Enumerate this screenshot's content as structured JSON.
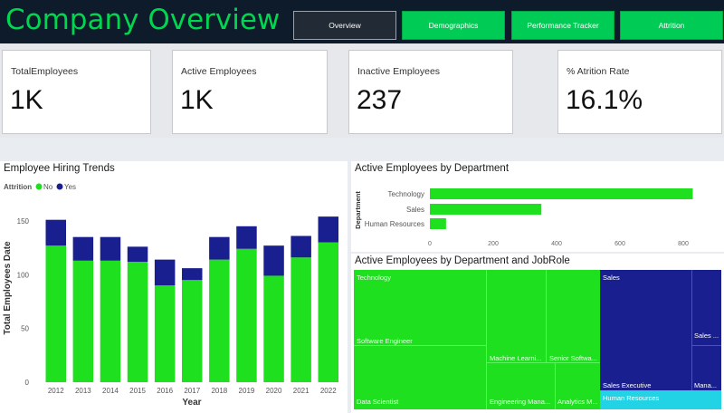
{
  "header": {
    "title": "Company Overview",
    "nav": [
      {
        "label": "Overview"
      },
      {
        "label": "Demographics"
      },
      {
        "label": "Performance Tracker"
      },
      {
        "label": "Attrition"
      }
    ]
  },
  "kpis": [
    {
      "label": "TotalEmployees",
      "value": "1K"
    },
    {
      "label": "Active Employees",
      "value": "1K"
    },
    {
      "label": "Inactive Employees",
      "value": "237"
    },
    {
      "label": "% Atrition Rate",
      "value": "16.1%"
    }
  ],
  "colors": {
    "no": "#1ee01e",
    "yes": "#1a1f8f",
    "brand": "#00d64f",
    "hr": "#22d3e6"
  },
  "chart_data": [
    {
      "type": "bar",
      "title": "Employee Hiring Trends",
      "legend_title": "Attrition",
      "legend_placement": "top-left",
      "xlabel": "Year",
      "ylabel": "Total Employees Date",
      "ylim": [
        0,
        160
      ],
      "yticks": [
        0,
        50,
        100,
        150
      ],
      "categories": [
        "2012",
        "2013",
        "2014",
        "2015",
        "2016",
        "2017",
        "2018",
        "2019",
        "2020",
        "2021",
        "2022"
      ],
      "series": [
        {
          "name": "No",
          "values": [
            127,
            113,
            113,
            112,
            90,
            95,
            114,
            124,
            99,
            116,
            130
          ]
        },
        {
          "name": "Yes",
          "values": [
            24,
            22,
            22,
            14,
            24,
            11,
            21,
            21,
            28,
            20,
            24
          ]
        }
      ]
    },
    {
      "type": "bar",
      "orientation": "horizontal",
      "title": "Active Employees by Department",
      "ylabel": "Department",
      "categories": [
        "Technology",
        "Sales",
        "Human Resources"
      ],
      "values": [
        830,
        352,
        51
      ],
      "xlim": [
        0,
        850
      ],
      "xticks": [
        0,
        200,
        400,
        600,
        800
      ]
    },
    {
      "type": "treemap",
      "title": "Active Employees by Department and JobRole",
      "groups": [
        {
          "name": "Technology",
          "roles": [
            "Software Engineer",
            "Data Scientist",
            "Machine Learni...",
            "Engineering Mana...",
            "Senior Softwa...",
            "Analytics M..."
          ]
        },
        {
          "name": "Sales",
          "roles": [
            "Sales Executive",
            "Sales ...",
            "Mana..."
          ]
        },
        {
          "name": "Human Resources",
          "roles": []
        }
      ]
    }
  ]
}
